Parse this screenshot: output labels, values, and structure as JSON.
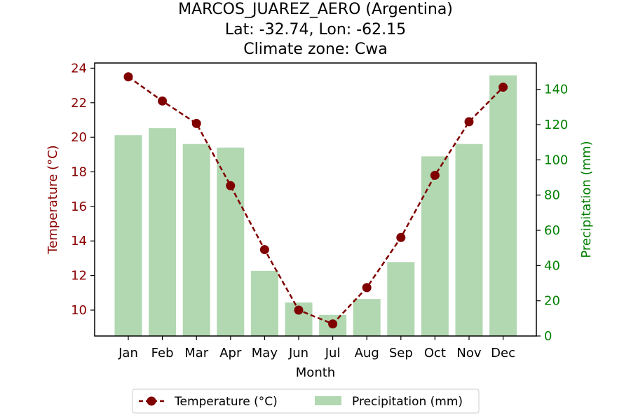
{
  "chart_data": {
    "type": "bar+line",
    "title_lines": [
      "MARCOS_JUAREZ_AERO (Argentina)",
      "Lat: -32.74, Lon: -62.15",
      "Climate zone: Cwa"
    ],
    "categories": [
      "Jan",
      "Feb",
      "Mar",
      "Apr",
      "May",
      "Jun",
      "Jul",
      "Aug",
      "Sep",
      "Oct",
      "Nov",
      "Dec"
    ],
    "xlabel": "Month",
    "temperature": {
      "name": "Temperature (°C)",
      "values": [
        23.5,
        22.1,
        20.8,
        17.2,
        13.5,
        10.0,
        9.2,
        11.3,
        14.2,
        17.8,
        20.9,
        22.9
      ],
      "color": "#800000",
      "axis_label": "Temperature (°C)",
      "ylim": [
        8.5,
        24.3
      ],
      "ticks": [
        10,
        12,
        14,
        16,
        18,
        20,
        22,
        24
      ]
    },
    "precipitation": {
      "name": "Precipitation (mm)",
      "values": [
        114,
        118,
        109,
        107,
        37,
        19,
        12,
        21,
        42,
        102,
        109,
        148
      ],
      "color": "#b2d8b2",
      "axis_label": "Precipitation (mm)",
      "axis_color": "#008000",
      "ylim": [
        0,
        155
      ],
      "ticks": [
        0,
        20,
        40,
        60,
        80,
        100,
        120,
        140
      ]
    },
    "legend_placement": "bottom-center",
    "grid": false
  }
}
